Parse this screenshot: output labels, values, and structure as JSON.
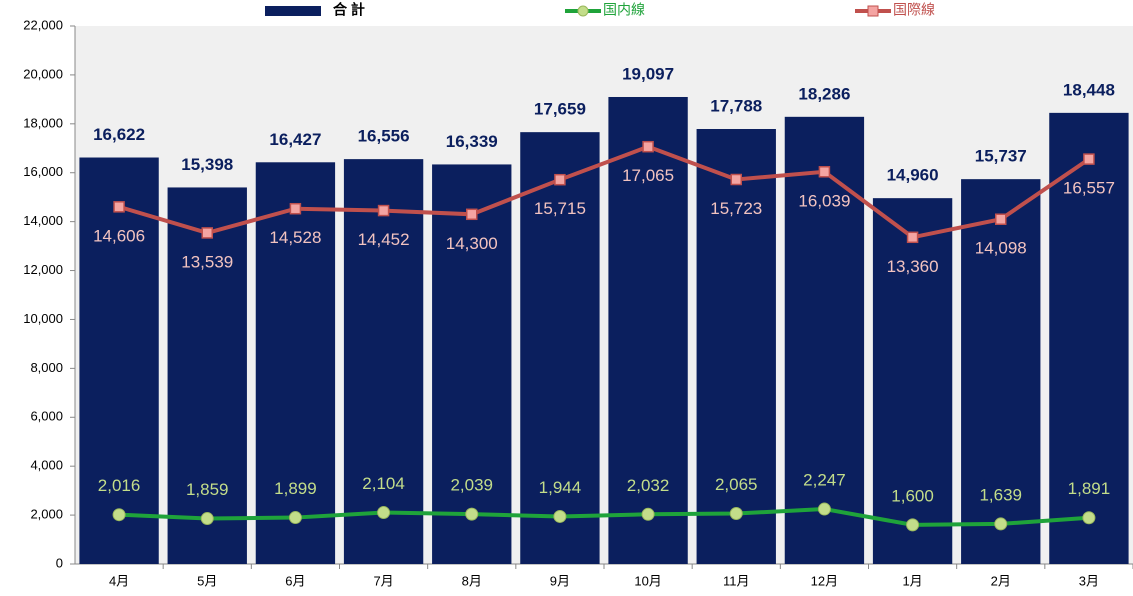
{
  "chart_data": {
    "type": "combo",
    "categories": [
      "4月",
      "5月",
      "6月",
      "7月",
      "8月",
      "9月",
      "10月",
      "11月",
      "12月",
      "1月",
      "2月",
      "3月"
    ],
    "series": [
      {
        "name": "合 計",
        "type": "bar",
        "color": "#0b1f5e",
        "label_color": "#0b1f5e",
        "values": [
          16622,
          15398,
          16427,
          16556,
          16339,
          17659,
          19097,
          17788,
          18286,
          14960,
          15737,
          18448
        ],
        "value_labels": [
          "16,622",
          "15,398",
          "16,427",
          "16,556",
          "16,339",
          "17,659",
          "19,097",
          "17,788",
          "18,286",
          "14,960",
          "15,737",
          "18,448"
        ]
      },
      {
        "name": "国内線",
        "type": "line",
        "marker": "circle",
        "color": "#1fa33a",
        "marker_color": "#c3dd8a",
        "label_color": "#c3dd8a",
        "values": [
          2016,
          1859,
          1899,
          2104,
          2039,
          1944,
          2032,
          2065,
          2247,
          1600,
          1639,
          1891
        ],
        "value_labels": [
          "2,016",
          "1,859",
          "1,899",
          "2,104",
          "2,039",
          "1,944",
          "2,032",
          "2,065",
          "2,247",
          "1,600",
          "1,639",
          "1,891"
        ]
      },
      {
        "name": "国際線",
        "type": "line",
        "marker": "square",
        "color": "#c0504d",
        "marker_color": "#f4a4a2",
        "label_color": "#f2c3c0",
        "values": [
          14606,
          13539,
          14528,
          14452,
          14300,
          15715,
          17065,
          15723,
          16039,
          13360,
          14098,
          16557
        ],
        "value_labels": [
          "14,606",
          "13,539",
          "14,528",
          "14,452",
          "14,300",
          "15,715",
          "17,065",
          "15,723",
          "16,039",
          "13,360",
          "14,098",
          "16,557"
        ]
      }
    ],
    "ylim": [
      0,
      22000
    ],
    "yticks": [
      0,
      {
        "value": 2000,
        "label": "2,000"
      },
      {
        "value": 4000,
        "label": "4,000"
      },
      {
        "value": 6000,
        "label": "6,000"
      },
      {
        "value": 8000,
        "label": "8,000"
      },
      {
        "value": 10000,
        "label": "10,000"
      },
      {
        "value": 12000,
        "label": "12,000"
      },
      {
        "value": 14000,
        "label": "14,000"
      },
      {
        "value": 16000,
        "label": "16,000"
      },
      {
        "value": 18000,
        "label": "18,000"
      },
      {
        "value": 20000,
        "label": "20,000"
      },
      {
        "value": 22000,
        "label": "22,000"
      }
    ],
    "grid": false
  }
}
